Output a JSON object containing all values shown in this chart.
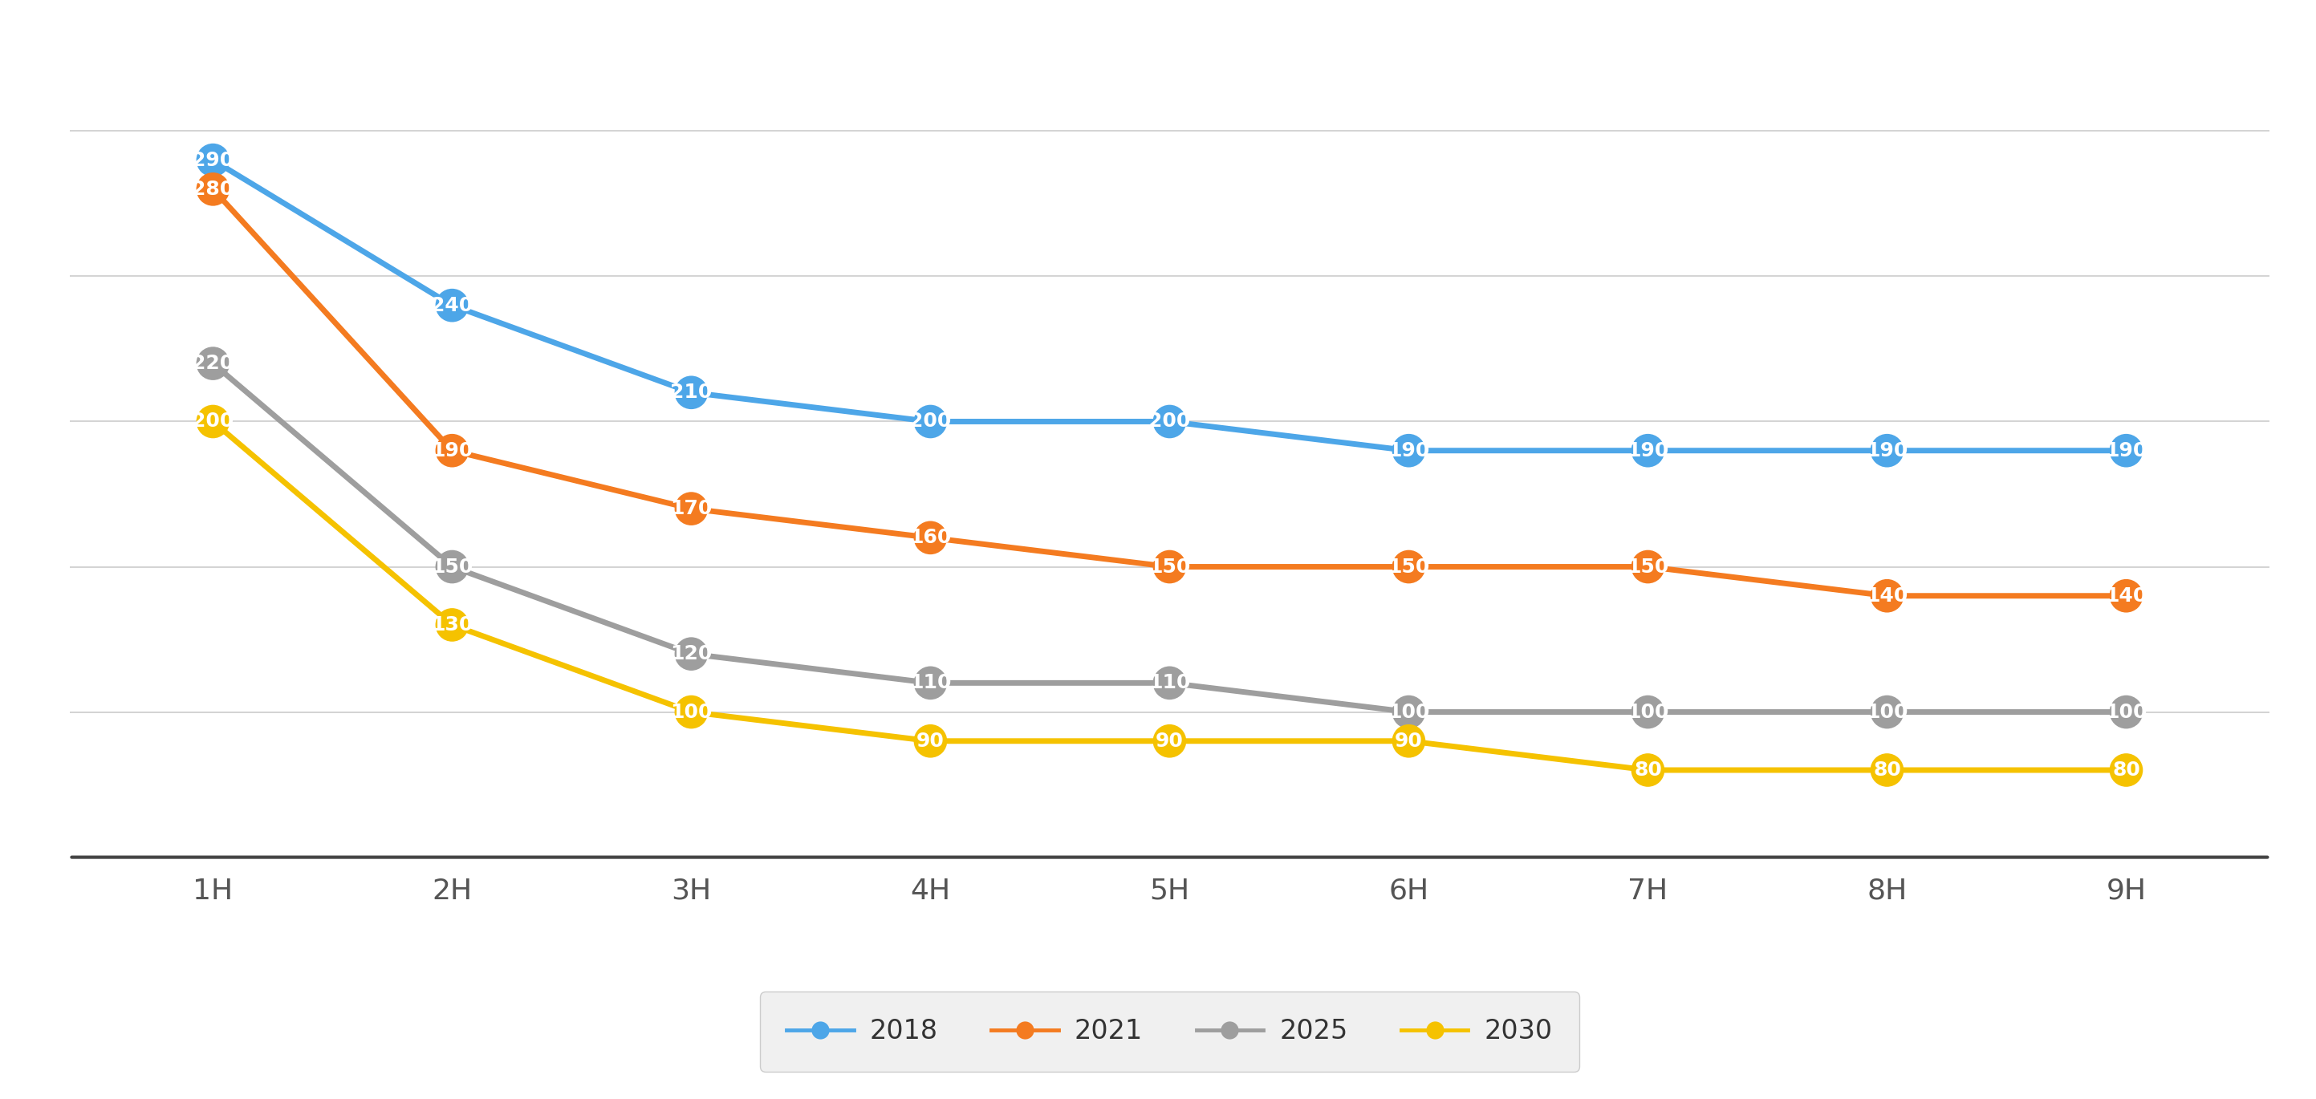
{
  "x_labels": [
    "1H",
    "2H",
    "3H",
    "4H",
    "5H",
    "6H",
    "7H",
    "8H",
    "9H"
  ],
  "series": {
    "2018": {
      "values": [
        290,
        240,
        210,
        200,
        200,
        190,
        190,
        190,
        190
      ],
      "color": "#4da6e8"
    },
    "2021": {
      "values": [
        280,
        190,
        170,
        160,
        150,
        150,
        150,
        140,
        140
      ],
      "color": "#f47b20"
    },
    "2025": {
      "values": [
        220,
        150,
        120,
        110,
        110,
        100,
        100,
        100,
        100
      ],
      "color": "#9e9e9e"
    },
    "2030": {
      "values": [
        200,
        130,
        100,
        90,
        90,
        90,
        80,
        80,
        80
      ],
      "color": "#f5c200"
    }
  },
  "series_order": [
    "2018",
    "2021",
    "2025",
    "2030"
  ],
  "ylim": [
    50,
    330
  ],
  "background_color": "#ffffff",
  "grid_color": "#cccccc",
  "marker_size": 900,
  "linewidth": 5,
  "label_fontsize": 18,
  "tick_fontsize": 26,
  "legend_fontsize": 24,
  "grid_lines": [
    100,
    150,
    200,
    250,
    300
  ]
}
